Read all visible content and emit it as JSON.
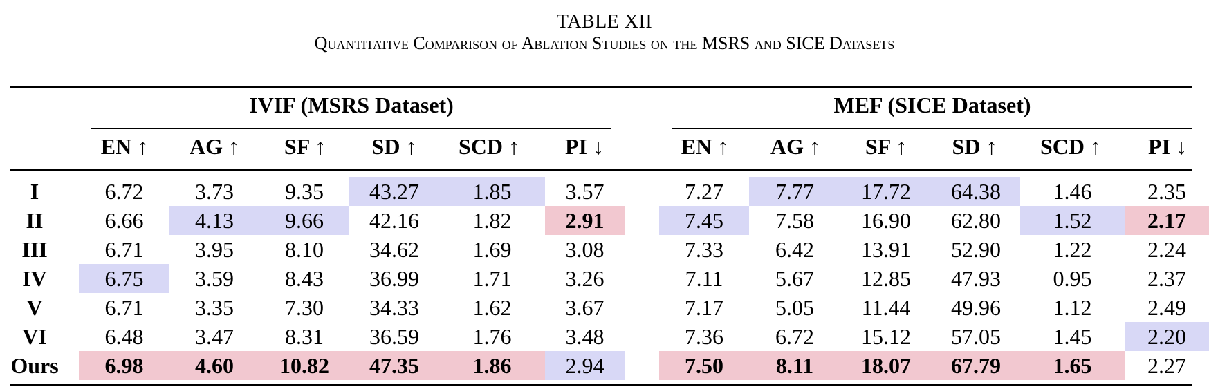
{
  "table": {
    "number": "TABLE XII",
    "title": "Quantitative Comparison of Ablation Studies on the MSRS and SICE Datasets",
    "groups": [
      "IVIF (MSRS Dataset)",
      "MEF (SICE Dataset)"
    ],
    "columns": [
      "EN ↑",
      "AG ↑",
      "SF ↑",
      "SD ↑",
      "SCD ↑",
      "PI ↓",
      "EN ↑",
      "AG ↑",
      "SF ↑",
      "SD ↑",
      "SCD ↑",
      "PI ↓"
    ],
    "highlight_colors": {
      "best": "#f2c8d0",
      "second": "#d8d8f6"
    },
    "rows": [
      {
        "label": "I",
        "values": [
          "6.72",
          "3.73",
          "9.35",
          "43.27",
          "1.85",
          "3.57",
          "7.27",
          "7.77",
          "17.72",
          "64.38",
          "1.46",
          "2.35"
        ],
        "marks": [
          "",
          "",
          "",
          "second",
          "second",
          "",
          "",
          "second",
          "second",
          "second",
          "",
          ""
        ]
      },
      {
        "label": "II",
        "values": [
          "6.66",
          "4.13",
          "9.66",
          "42.16",
          "1.82",
          "2.91",
          "7.45",
          "7.58",
          "16.90",
          "62.80",
          "1.52",
          "2.17"
        ],
        "marks": [
          "",
          "second",
          "second",
          "",
          "",
          "best",
          "second",
          "",
          "",
          "",
          "second",
          "best"
        ]
      },
      {
        "label": "III",
        "values": [
          "6.71",
          "3.95",
          "8.10",
          "34.62",
          "1.69",
          "3.08",
          "7.33",
          "6.42",
          "13.91",
          "52.90",
          "1.22",
          "2.24"
        ],
        "marks": [
          "",
          "",
          "",
          "",
          "",
          "",
          "",
          "",
          "",
          "",
          "",
          ""
        ]
      },
      {
        "label": "IV",
        "values": [
          "6.75",
          "3.59",
          "8.43",
          "36.99",
          "1.71",
          "3.26",
          "7.11",
          "5.67",
          "12.85",
          "47.93",
          "0.95",
          "2.37"
        ],
        "marks": [
          "second",
          "",
          "",
          "",
          "",
          "",
          "",
          "",
          "",
          "",
          "",
          ""
        ]
      },
      {
        "label": "V",
        "values": [
          "6.71",
          "3.35",
          "7.30",
          "34.33",
          "1.62",
          "3.67",
          "7.17",
          "5.05",
          "11.44",
          "49.96",
          "1.12",
          "2.49"
        ],
        "marks": [
          "",
          "",
          "",
          "",
          "",
          "",
          "",
          "",
          "",
          "",
          "",
          ""
        ]
      },
      {
        "label": "VI",
        "values": [
          "6.48",
          "3.47",
          "8.31",
          "36.59",
          "1.76",
          "3.48",
          "7.36",
          "6.72",
          "15.12",
          "57.05",
          "1.45",
          "2.20"
        ],
        "marks": [
          "",
          "",
          "",
          "",
          "",
          "",
          "",
          "",
          "",
          "",
          "",
          "second"
        ]
      },
      {
        "label": "Ours",
        "values": [
          "6.98",
          "4.60",
          "10.82",
          "47.35",
          "1.86",
          "2.94",
          "7.50",
          "8.11",
          "18.07",
          "67.79",
          "1.65",
          "2.27"
        ],
        "marks": [
          "best",
          "best",
          "best",
          "best",
          "best",
          "second",
          "best",
          "best",
          "best",
          "best",
          "best",
          ""
        ]
      }
    ]
  }
}
